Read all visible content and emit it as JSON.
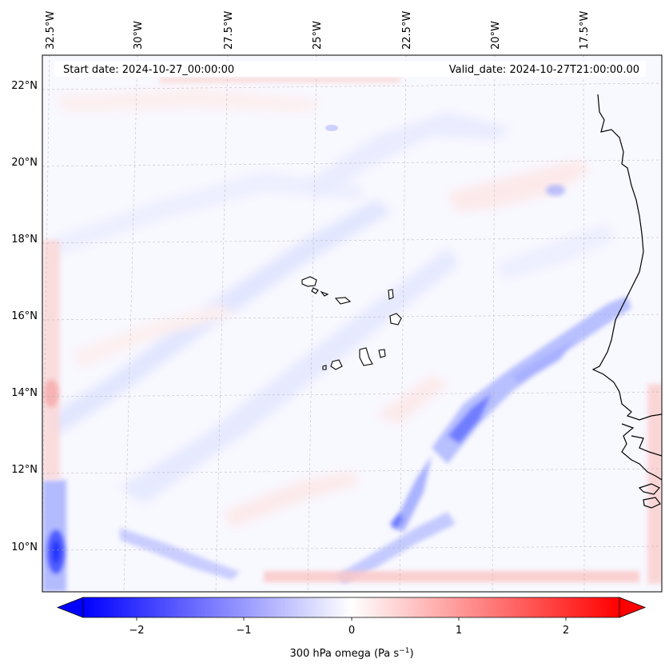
{
  "header": {
    "start_date": "Start date: 2024-10-27_00:00:00",
    "valid_date": "Valid_date: 2024-10-27T21:00:00.00"
  },
  "lon_labels": [
    "32.5°W",
    "30°W",
    "27.5°W",
    "25°W",
    "22.5°W",
    "20°W",
    "17.5°W"
  ],
  "lat_labels": [
    "22°N",
    "20°N",
    "18°N",
    "16°N",
    "14°N",
    "12°N",
    "10°N"
  ],
  "colorbar": {
    "ticks": [
      "−2",
      "−1",
      "0",
      "1",
      "2"
    ],
    "label_main": "300 hPa omega (Pa s",
    "label_exp": "−1",
    "label_close": ")",
    "range": [
      -2.5,
      2.5
    ],
    "negative_color": "#0000ff",
    "positive_color": "#ff0000"
  },
  "colors": {
    "coastline": "#000000",
    "gridline": "#b0b0b0",
    "background_field": "#f8f8ff"
  }
}
